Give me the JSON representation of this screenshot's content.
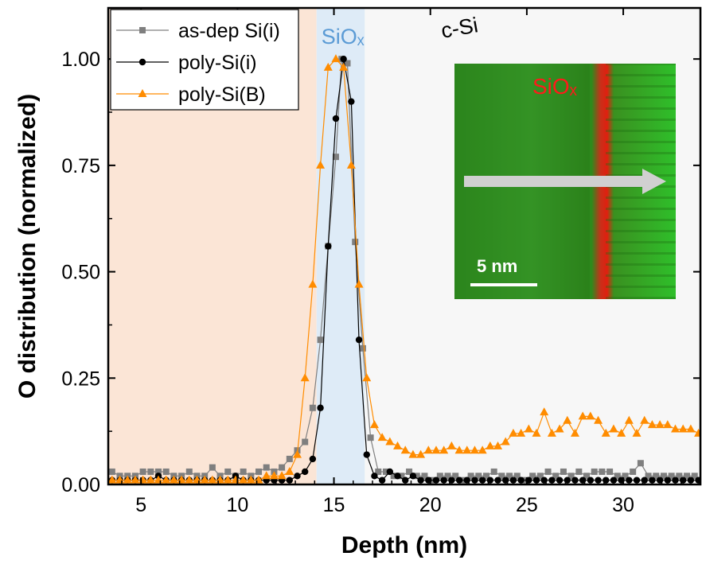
{
  "chart_data": {
    "type": "scatter",
    "xlabel": "Depth (nm)",
    "ylabel": "O distribution (normalized)",
    "xlim": [
      3.3,
      34
    ],
    "ylim": [
      0,
      1.12
    ],
    "x_ticks": [
      5,
      10,
      15,
      20,
      25,
      30
    ],
    "y_ticks": [
      0.0,
      0.25,
      0.5,
      0.75,
      1.0
    ],
    "x_tick_labels": [
      "5",
      "10",
      "15",
      "20",
      "25",
      "30"
    ],
    "y_tick_labels": [
      "0.00",
      "0.25",
      "0.50",
      "0.75",
      "1.00"
    ],
    "grid": false,
    "legend_position": "top-left",
    "regions": [
      {
        "label": "",
        "x_range": [
          3.3,
          14.1
        ],
        "color": "#fbe5d6"
      },
      {
        "label": "SiOₓ",
        "x_range": [
          14.1,
          16.6
        ],
        "color": "#deebf7",
        "label_color": "#5b9bd5"
      },
      {
        "label": "c-Si",
        "x_range": [
          16.6,
          34
        ],
        "color": "#f7f7f7",
        "label_color": "#000000"
      }
    ],
    "series": [
      {
        "name": "as-dep Si(i)",
        "marker": "square",
        "color": "#7f7f7f",
        "x": [
          3.5,
          3.9,
          4.3,
          4.7,
          5.1,
          5.5,
          5.9,
          6.3,
          6.7,
          7.1,
          7.5,
          7.9,
          8.3,
          8.7,
          9.1,
          9.5,
          9.9,
          10.3,
          10.7,
          11.1,
          11.5,
          11.9,
          12.3,
          12.7,
          13.1,
          13.5,
          13.9,
          14.3,
          14.7,
          15.1,
          15.4,
          15.7,
          16.1,
          16.5,
          16.9,
          17.3,
          17.7,
          18.1,
          18.5,
          18.9,
          19.3,
          19.7,
          20.1,
          20.5,
          20.9,
          21.3,
          21.7,
          22.1,
          22.5,
          22.9,
          23.3,
          23.7,
          24.1,
          24.5,
          24.9,
          25.3,
          25.7,
          26.1,
          26.5,
          26.9,
          27.3,
          27.7,
          28.1,
          28.5,
          28.9,
          29.3,
          29.7,
          30.1,
          30.5,
          30.9,
          31.3,
          31.7,
          32.1,
          32.5,
          32.9,
          33.3,
          33.7
        ],
        "y": [
          0.03,
          0.02,
          0.02,
          0.02,
          0.03,
          0.03,
          0.03,
          0.03,
          0.02,
          0.02,
          0.03,
          0.02,
          0.02,
          0.04,
          0.02,
          0.03,
          0.02,
          0.03,
          0.02,
          0.03,
          0.04,
          0.03,
          0.04,
          0.06,
          0.08,
          0.1,
          0.18,
          0.34,
          0.56,
          0.77,
          1.0,
          0.99,
          0.57,
          0.32,
          0.11,
          0.03,
          0.03,
          0.02,
          0.02,
          0.03,
          0.02,
          0.02,
          0.01,
          0.02,
          0.02,
          0.02,
          0.01,
          0.02,
          0.02,
          0.02,
          0.03,
          0.02,
          0.02,
          0.02,
          0.01,
          0.02,
          0.02,
          0.03,
          0.02,
          0.03,
          0.02,
          0.03,
          0.02,
          0.03,
          0.03,
          0.03,
          0.02,
          0.02,
          0.03,
          0.05,
          0.02,
          0.02,
          0.02,
          0.02,
          0.02,
          0.02,
          0.02
        ]
      },
      {
        "name": "poly-Si(i)",
        "marker": "circle",
        "color": "#000000",
        "x": [
          3.5,
          3.9,
          4.3,
          4.7,
          5.1,
          5.5,
          5.9,
          6.3,
          6.7,
          7.1,
          7.5,
          7.9,
          8.3,
          8.7,
          9.1,
          9.5,
          9.9,
          10.3,
          10.7,
          11.1,
          11.5,
          11.9,
          12.3,
          12.7,
          13.1,
          13.5,
          13.9,
          14.3,
          14.7,
          15.1,
          15.5,
          15.9,
          16.3,
          16.7,
          17.1,
          17.5,
          17.9,
          18.3,
          18.7,
          19.1,
          19.5,
          19.9,
          20.3,
          20.7,
          21.1,
          21.5,
          21.9,
          22.3,
          22.7,
          23.1,
          23.5,
          23.9,
          24.3,
          24.7,
          25.1,
          25.5,
          25.9,
          26.3,
          26.7,
          27.1,
          27.5,
          27.9,
          28.3,
          28.7,
          29.1,
          29.5,
          29.9,
          30.3,
          30.7,
          31.1,
          31.5,
          31.9,
          32.3,
          32.7,
          33.1,
          33.5,
          33.9
        ],
        "y": [
          0.01,
          0.01,
          0.01,
          0.01,
          0.01,
          0.01,
          0.02,
          0.01,
          0.01,
          0.01,
          0.01,
          0.01,
          0.01,
          0.01,
          0.01,
          0.01,
          0.02,
          0.01,
          0.01,
          0.01,
          0.01,
          0.01,
          0.01,
          0.01,
          0.02,
          0.03,
          0.06,
          0.18,
          0.56,
          0.86,
          1.0,
          0.9,
          0.34,
          0.07,
          0.02,
          0.01,
          0.03,
          0.02,
          0.01,
          0.02,
          0.01,
          0.01,
          0.01,
          0.01,
          0.01,
          0.01,
          0.01,
          0.01,
          0.01,
          0.01,
          0.01,
          0.01,
          0.01,
          0.01,
          0.01,
          0.01,
          0.01,
          0.01,
          0.01,
          0.01,
          0.01,
          0.01,
          0.01,
          0.01,
          0.01,
          0.01,
          0.01,
          0.01,
          0.01,
          0.01,
          0.01,
          0.01,
          0.01,
          0.01,
          0.01,
          0.01,
          0.01
        ]
      },
      {
        "name": "poly-Si(B)",
        "marker": "triangle",
        "color": "#ff8c00",
        "x": [
          3.5,
          3.9,
          4.3,
          4.7,
          5.1,
          5.5,
          5.9,
          6.3,
          6.7,
          7.1,
          7.5,
          7.9,
          8.3,
          8.7,
          9.1,
          9.5,
          9.9,
          10.3,
          10.7,
          11.1,
          11.5,
          11.9,
          12.3,
          12.7,
          13.1,
          13.5,
          13.9,
          14.3,
          14.7,
          15.1,
          15.5,
          15.9,
          16.3,
          16.7,
          17.1,
          17.5,
          17.9,
          18.3,
          18.7,
          19.1,
          19.5,
          19.9,
          20.3,
          20.7,
          21.1,
          21.5,
          21.9,
          22.3,
          22.7,
          23.1,
          23.5,
          23.9,
          24.3,
          24.7,
          25.1,
          25.5,
          25.9,
          26.3,
          26.7,
          27.1,
          27.5,
          27.9,
          28.3,
          28.7,
          29.1,
          29.5,
          29.9,
          30.3,
          30.7,
          31.1,
          31.5,
          31.9,
          32.3,
          32.7,
          33.1,
          33.5,
          33.9
        ],
        "y": [
          0.01,
          0.01,
          0.01,
          0.01,
          0.01,
          0.01,
          0.01,
          0.01,
          0.01,
          0.01,
          0.01,
          0.01,
          0.01,
          0.01,
          0.01,
          0.01,
          0.01,
          0.01,
          0.01,
          0.01,
          0.02,
          0.02,
          0.02,
          0.03,
          0.07,
          0.25,
          0.47,
          0.75,
          0.98,
          1.0,
          0.98,
          0.75,
          0.47,
          0.25,
          0.14,
          0.11,
          0.1,
          0.09,
          0.08,
          0.07,
          0.07,
          0.08,
          0.08,
          0.08,
          0.09,
          0.08,
          0.08,
          0.08,
          0.08,
          0.09,
          0.09,
          0.1,
          0.12,
          0.12,
          0.13,
          0.12,
          0.17,
          0.12,
          0.13,
          0.15,
          0.12,
          0.16,
          0.16,
          0.15,
          0.12,
          0.13,
          0.12,
          0.15,
          0.12,
          0.15,
          0.14,
          0.14,
          0.14,
          0.13,
          0.13,
          0.13,
          0.12
        ]
      }
    ],
    "inset": {
      "region_label": "SiOₓ",
      "scale_bar_label": "5 nm"
    }
  }
}
